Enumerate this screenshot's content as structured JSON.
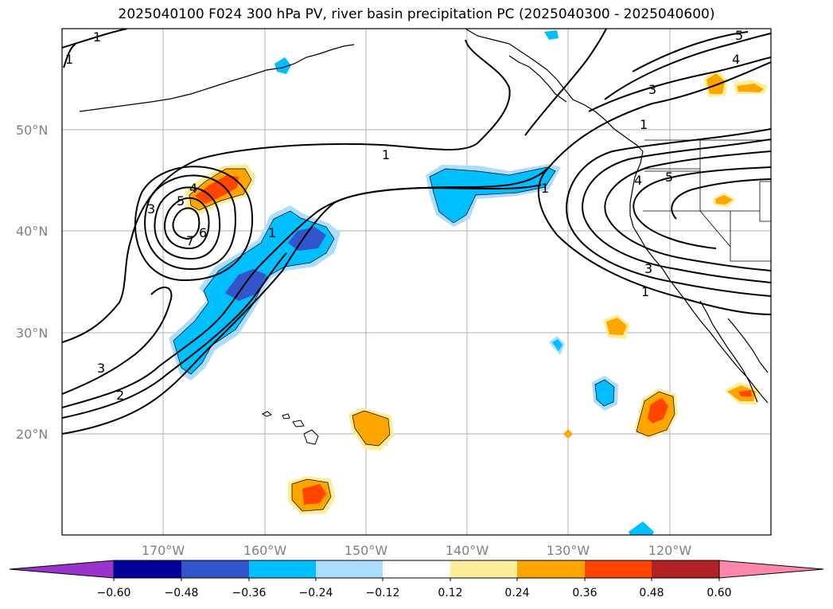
{
  "title": "2025040100 F024 300 hPa PV, river basin precipitation PC (2025040300 - 2025040600)",
  "map": {
    "lat_labels": [
      "50°N",
      "40°N",
      "30°N",
      "20°N"
    ],
    "lon_labels": [
      "170°W",
      "160°W",
      "150°W",
      "140°W",
      "130°W",
      "120°W"
    ],
    "contour_labels": [
      "1",
      "1",
      "1",
      "1",
      "1",
      "1",
      "1",
      "2",
      "3",
      "3",
      "3",
      "4",
      "4",
      "5",
      "5",
      "5",
      "6",
      "7"
    ]
  },
  "colorbar": {
    "tick_labels": [
      "−0.60",
      "−0.48",
      "−0.36",
      "−0.24",
      "−0.12",
      "0.12",
      "0.24",
      "0.36",
      "0.48",
      "0.60"
    ],
    "colors": [
      "#9933cc",
      "#000099",
      "#3355cc",
      "#00bfff",
      "#aaddff",
      "#ffffff",
      "#ffee99",
      "#ffa500",
      "#ff4500",
      "#b22222",
      "#ff88aa"
    ]
  },
  "colors": {
    "light_blue": "#aaddff",
    "sky_blue": "#00bfff",
    "royal_blue": "#3355cc",
    "light_yellow": "#ffee99",
    "orange": "#ffa500",
    "red_orange": "#ff4500",
    "grid": "#b0b0b0",
    "contour": "#000000"
  }
}
